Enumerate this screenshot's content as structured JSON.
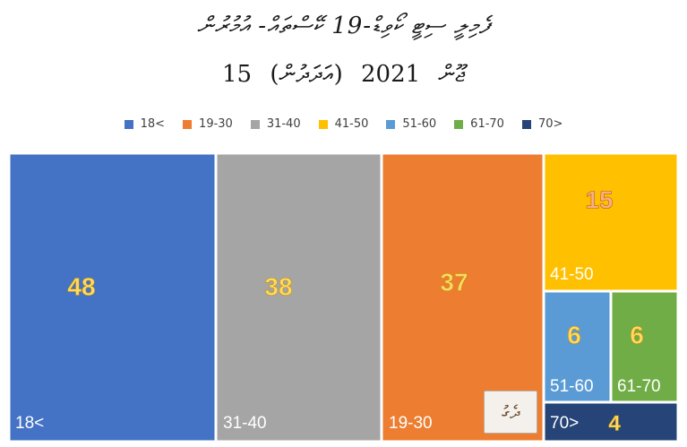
{
  "title": {
    "line1": "ފެމިލީ ސިޓީ ކޯވިޑް-19 ކޭސްތައް- އުމުރުން",
    "date_day": "15",
    "date_month": "ޖޫން",
    "date_year": "2021",
    "date_note": "(އަދަދުން)"
  },
  "legend": [
    {
      "label": "18<",
      "color": "#4472C4"
    },
    {
      "label": "19-30",
      "color": "#ED7D31"
    },
    {
      "label": "31-40",
      "color": "#A5A5A5"
    },
    {
      "label": "41-50",
      "color": "#FFC000"
    },
    {
      "label": "51-60",
      "color": "#5B9BD5"
    },
    {
      "label": "61-70",
      "color": "#70AD47"
    },
    {
      "label": "70>",
      "color": "#264478"
    }
  ],
  "chart_data": {
    "type": "treemap",
    "title": "",
    "nodes": [
      {
        "label": "18<",
        "value": 48,
        "color": "#4472C4"
      },
      {
        "label": "31-40",
        "value": 38,
        "color": "#A5A5A5"
      },
      {
        "label": "19-30",
        "value": 37,
        "color": "#ED7D31"
      },
      {
        "label": "41-50",
        "value": 15,
        "color": "#FFC000"
      },
      {
        "label": "51-60",
        "value": 6,
        "color": "#5B9BD5"
      },
      {
        "label": "61-70",
        "value": 6,
        "color": "#70AD47"
      },
      {
        "label": "70>",
        "value": 4,
        "color": "#264478"
      }
    ],
    "value_label_color": "#FFD966",
    "value_label_color_alt": "#F4B183"
  },
  "logo": {
    "text": "ދެގު"
  }
}
